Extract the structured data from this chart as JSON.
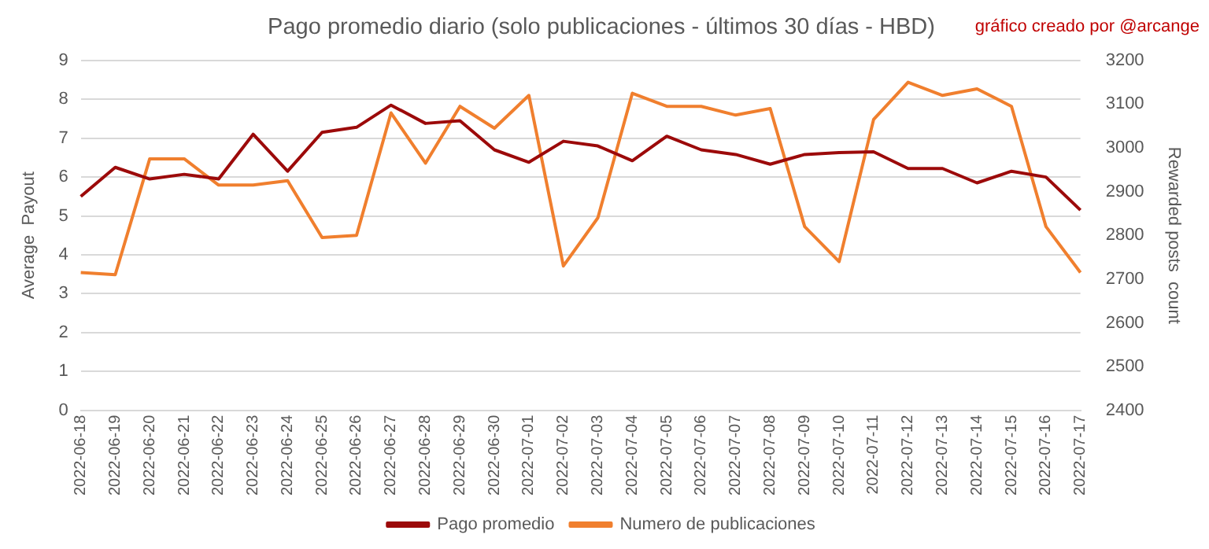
{
  "chart_data": {
    "type": "line",
    "title": "Pago promedio diario (solo publicaciones - últimos 30 días - HBD)",
    "annotations": [
      "gráfico creado por @arcange"
    ],
    "ylabel": "Average  Payout",
    "y2label": "Rewarded posts  count",
    "categories": [
      "2022-06-18",
      "2022-06-19",
      "2022-06-20",
      "2022-06-21",
      "2022-06-22",
      "2022-06-23",
      "2022-06-24",
      "2022-06-25",
      "2022-06-26",
      "2022-06-27",
      "2022-06-28",
      "2022-06-29",
      "2022-06-30",
      "2022-07-01",
      "2022-07-02",
      "2022-07-03",
      "2022-07-04",
      "2022-07-05",
      "2022-07-06",
      "2022-07-07",
      "2022-07-08",
      "2022-07-09",
      "2022-07-10",
      "2022-07-11",
      "2022-07-12",
      "2022-07-13",
      "2022-07-14",
      "2022-07-15",
      "2022-07-16",
      "2022-07-17"
    ],
    "series": [
      {
        "name": "Pago promedio",
        "color": "#9c0a0a",
        "values": [
          5.5,
          6.25,
          5.95,
          6.07,
          5.95,
          7.1,
          6.15,
          7.15,
          7.28,
          7.85,
          7.38,
          7.45,
          6.7,
          6.38,
          6.92,
          6.8,
          6.42,
          7.05,
          6.7,
          6.58,
          6.33,
          6.58,
          6.63,
          6.65,
          6.22,
          6.22,
          5.85,
          6.15,
          6.0,
          5.15
        ]
      },
      {
        "name": "Numero de publicaciones",
        "color": "#f07f2e",
        "axis": "y2",
        "values": [
          2715,
          2710,
          2975,
          2975,
          2915,
          2915,
          2925,
          2795,
          2800,
          3080,
          2965,
          3095,
          3045,
          3120,
          2730,
          2840,
          3125,
          3095,
          3095,
          3075,
          3090,
          2820,
          2740,
          3065,
          3150,
          3120,
          3135,
          3095,
          2820,
          2715
        ]
      }
    ],
    "ylim": [
      0,
      9
    ],
    "yticks": [
      0,
      1,
      2,
      3,
      4,
      5,
      6,
      7,
      8,
      9
    ],
    "y2lim": [
      2400,
      3200
    ],
    "y2ticks": [
      2400,
      2500,
      2600,
      2700,
      2800,
      2900,
      3000,
      3100,
      3200
    ],
    "grid": "y",
    "legend": "bottom",
    "marker": "none",
    "line_style": "solid"
  }
}
